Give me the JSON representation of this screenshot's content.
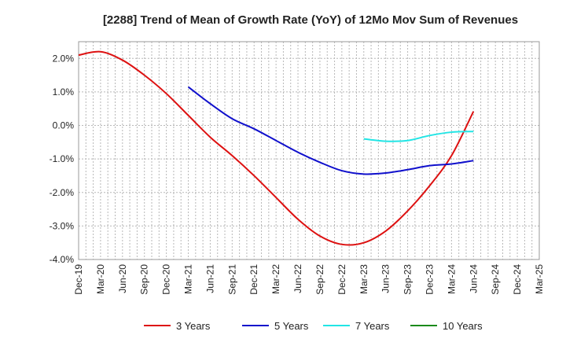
{
  "chart_data": {
    "type": "line",
    "title": "[2288]  Trend of Mean of Growth Rate (YoY) of 12Mo Mov Sum of Revenues",
    "xlabel": "",
    "ylabel": "",
    "ylim": [
      -4.0,
      2.5
    ],
    "y_ticks": [
      2.0,
      1.0,
      0.0,
      -1.0,
      -2.0,
      -3.0,
      -4.0
    ],
    "y_tick_labels": [
      "2.0%",
      "1.0%",
      "0.0%",
      "-1.0%",
      "-2.0%",
      "-3.0%",
      "-4.0%"
    ],
    "x_tick_labels": [
      "Dec-19",
      "Mar-20",
      "Jun-20",
      "Sep-20",
      "Dec-20",
      "Mar-21",
      "Jun-21",
      "Sep-21",
      "Dec-21",
      "Mar-22",
      "Jun-22",
      "Sep-22",
      "Dec-22",
      "Mar-23",
      "Jun-23",
      "Sep-23",
      "Dec-23",
      "Mar-24",
      "Jun-24",
      "Sep-24",
      "Dec-24",
      "Mar-25"
    ],
    "grid": true,
    "legend_position": "bottom",
    "series": [
      {
        "name": "3 Years",
        "color": "#dd1111",
        "values": [
          2.1,
          2.2,
          1.95,
          1.5,
          0.95,
          0.3,
          -0.35,
          -0.9,
          -1.5,
          -2.15,
          -2.8,
          -3.3,
          -3.55,
          -3.5,
          -3.15,
          -2.55,
          -1.8,
          -0.9,
          0.42
        ]
      },
      {
        "name": "5 Years",
        "color": "#1010cc",
        "values": [
          null,
          null,
          null,
          null,
          null,
          1.15,
          0.65,
          0.2,
          -0.1,
          -0.45,
          -0.8,
          -1.1,
          -1.35,
          -1.45,
          -1.42,
          -1.32,
          -1.2,
          -1.15,
          -1.05
        ]
      },
      {
        "name": "7 Years",
        "color": "#22e5e5",
        "values": [
          null,
          null,
          null,
          null,
          null,
          null,
          null,
          null,
          null,
          null,
          null,
          null,
          null,
          -0.4,
          -0.47,
          -0.45,
          -0.3,
          -0.2,
          -0.18
        ]
      },
      {
        "name": "10 Years",
        "color": "#1a8a1a",
        "values": []
      }
    ]
  }
}
